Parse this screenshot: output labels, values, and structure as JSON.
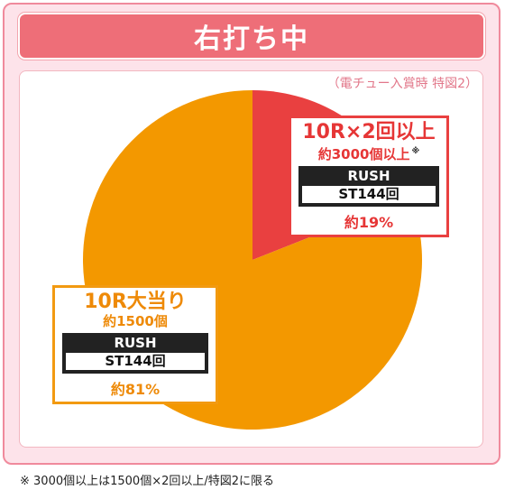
{
  "header": {
    "title": "右打ち中"
  },
  "note_top": "（電チュー入賞時 特図2）",
  "chart_data": {
    "type": "pie",
    "slices": [
      {
        "label": "10R×2回以上",
        "sub": "約3000個以上",
        "mark": "※",
        "rush": "RUSH",
        "st": "ST144回",
        "percent_label": "約19%",
        "value": 19,
        "color": "#e94040"
      },
      {
        "label": "10R大当り",
        "sub": "約1500個",
        "mark": "",
        "rush": "RUSH",
        "st": "ST144回",
        "percent_label": "約81%",
        "value": 81,
        "color": "#f39800"
      }
    ]
  },
  "footnote": "※ 3000個以上は1500個×2回以上/特図2に限る",
  "colors": {
    "frame_bg": "#fde3ea",
    "header_bg": "#ee6e78",
    "accent_red": "#e94040",
    "accent_orange": "#f39800"
  }
}
